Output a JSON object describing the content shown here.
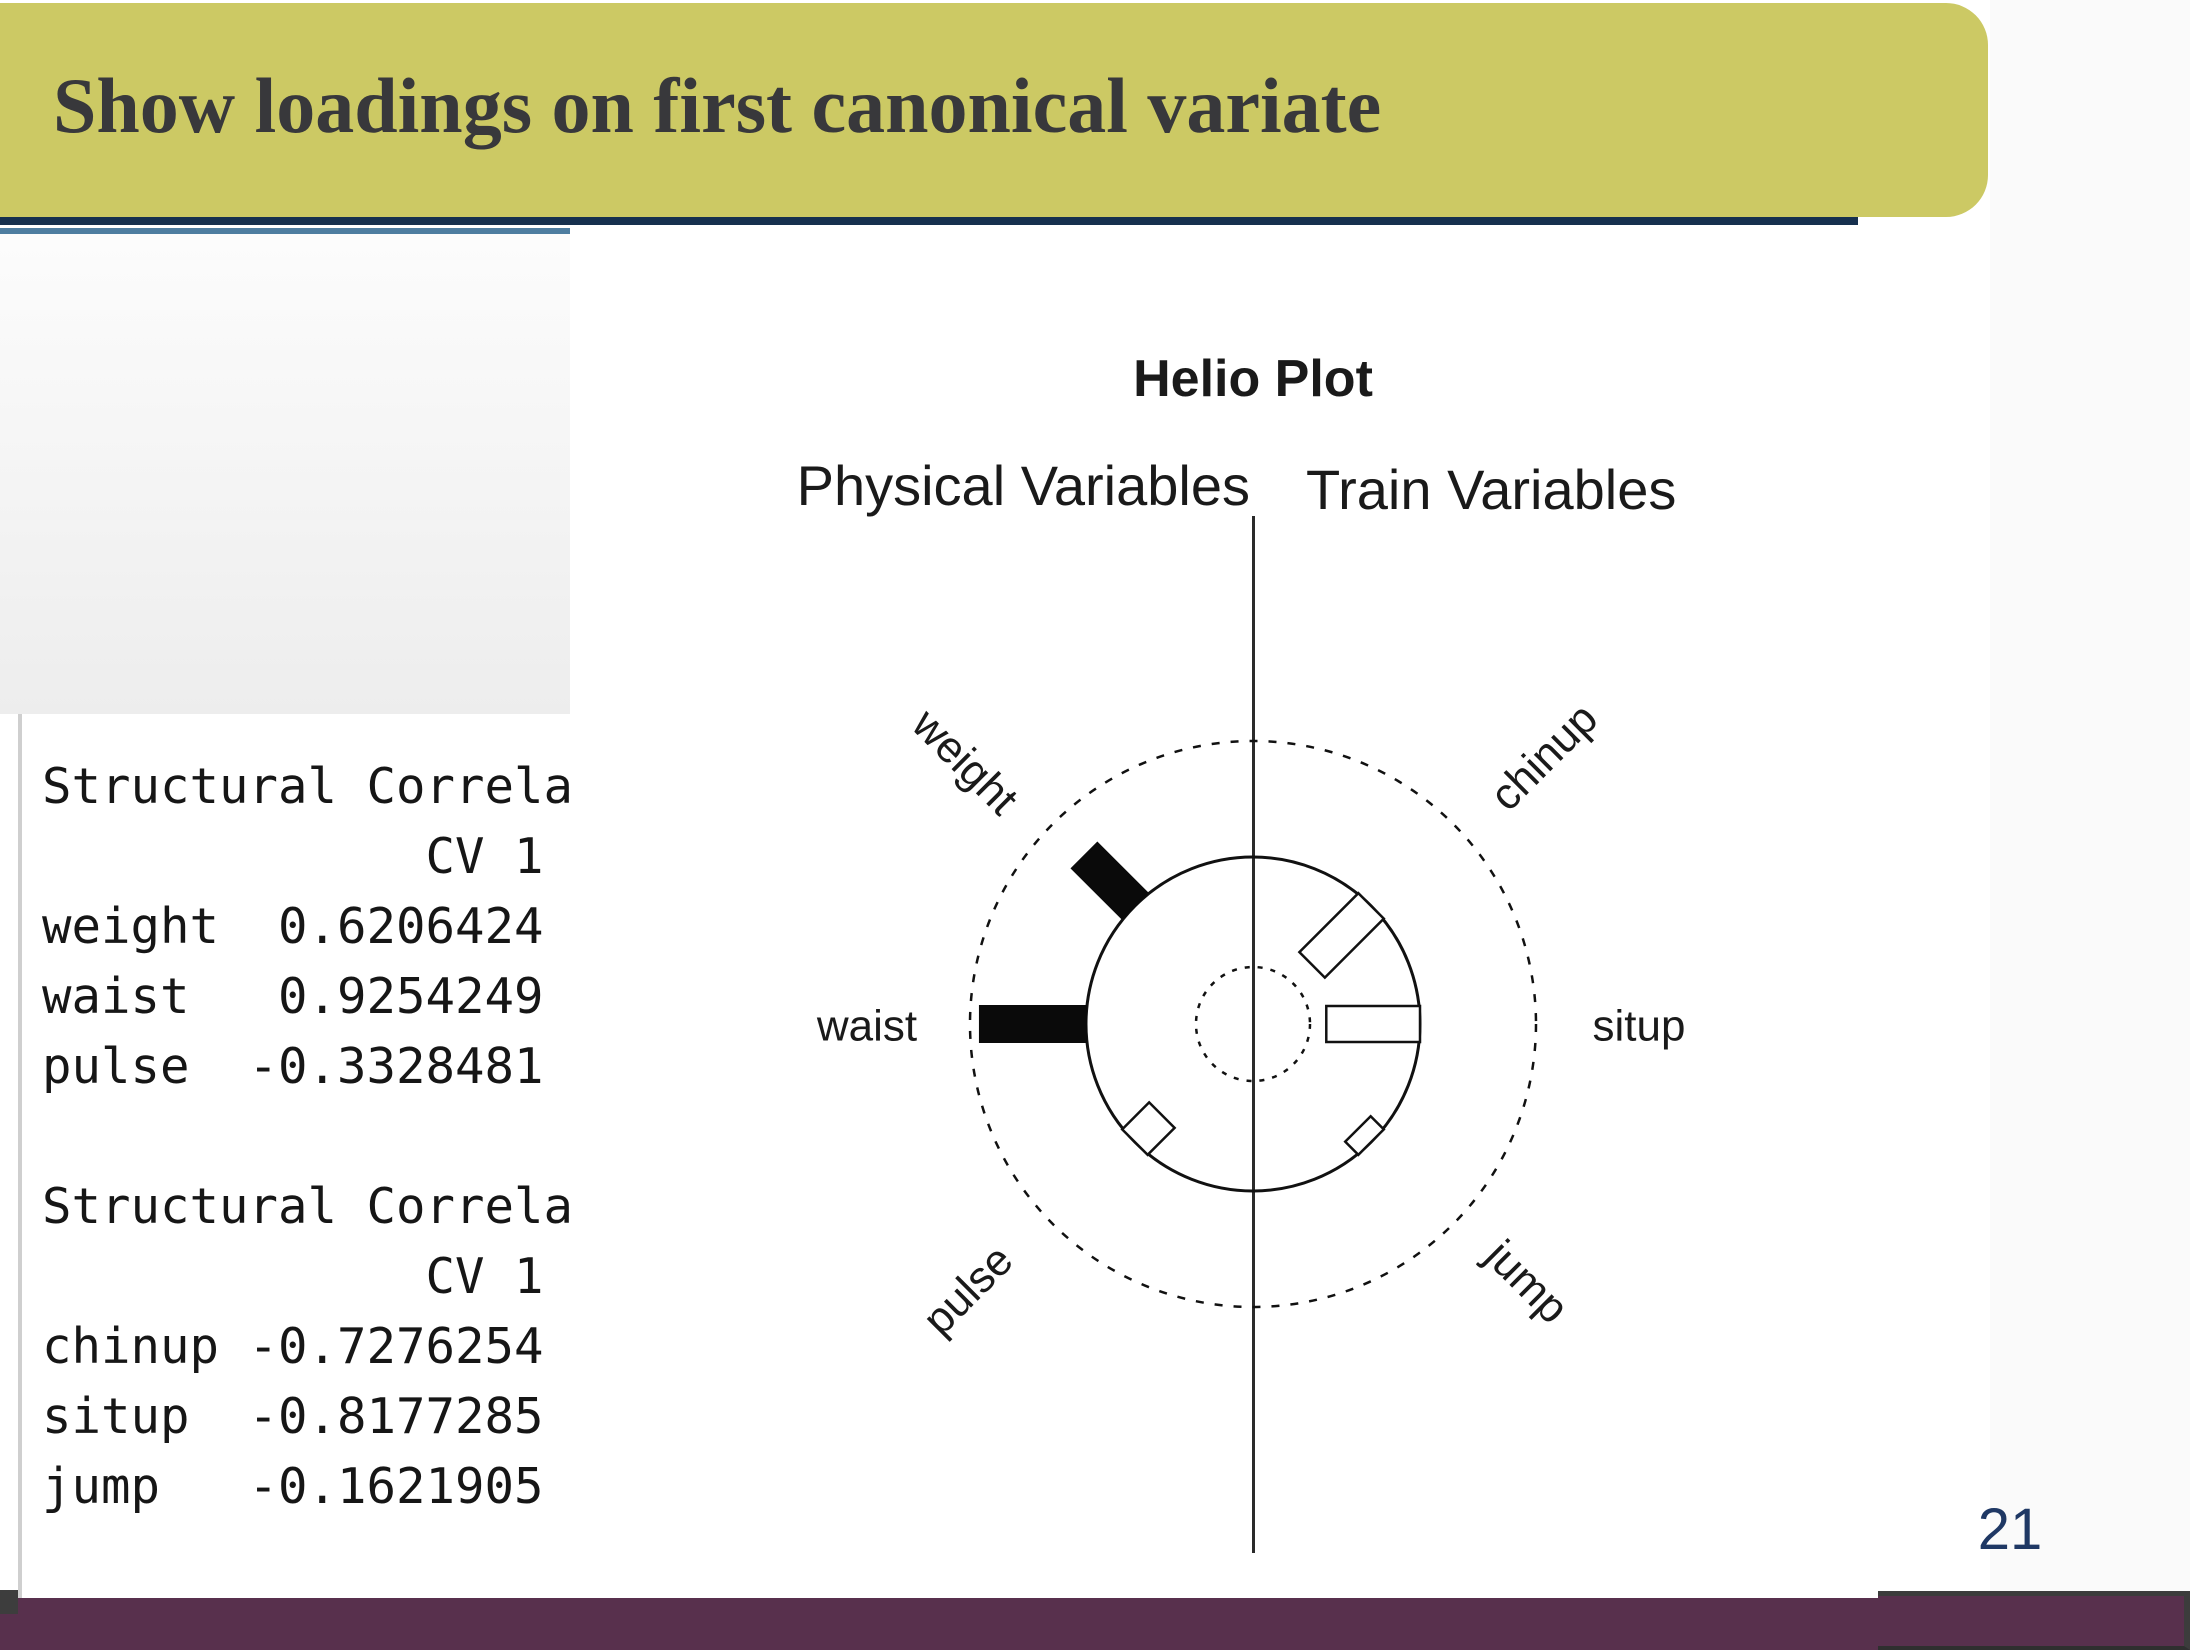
{
  "slide": {
    "title": "Show loadings on first canonical variate",
    "page_number": "21"
  },
  "console": {
    "text": "Structural Correla\n             CV 1\nweight  0.6206424\nwaist   0.9254249\npulse  -0.3328481\n\nStructural Correla\n             CV 1\nchinup -0.7276254\nsitup  -0.8177285\njump   -0.1621905",
    "block1_header": "Structural Correla",
    "block1_column": "CV 1",
    "block2_header": "Structural Correla",
    "block2_column": "CV 1"
  },
  "chart_data": {
    "type": "bar",
    "variant": "helio-plot-radial",
    "title": "Helio Plot",
    "left_header": "Physical Variables",
    "right_header": "Train Variables",
    "categories": [
      "weight",
      "waist",
      "pulse",
      "chinup",
      "situp",
      "jump"
    ],
    "values": [
      0.6206424,
      0.9254249,
      -0.3328481,
      -0.7276254,
      -0.8177285,
      -0.1621905
    ],
    "series": [
      {
        "name": "Physical Variables (CV 1)",
        "categories": [
          "weight",
          "waist",
          "pulse"
        ],
        "values": [
          0.6206424,
          0.9254249,
          -0.3328481
        ],
        "angles_deg": [
          135,
          180,
          225
        ]
      },
      {
        "name": "Train Variables (CV 1)",
        "categories": [
          "chinup",
          "situp",
          "jump"
        ],
        "values": [
          -0.7276254,
          -0.8177285,
          -0.1621905
        ],
        "angles_deg": [
          45,
          0,
          315
        ]
      }
    ],
    "encoding": "bar length proportional to |loading|; positive loadings filled black extending outward from solid unit circle; negative loadings hollow extending inward; dashed outer circle marks loading = 1",
    "legend_position": "none",
    "grid": false
  },
  "colors": {
    "banner": "#ccc964",
    "navy_rule": "#16304e",
    "blue_rule": "#4e7da0",
    "footer": "#58304d",
    "page_number": "#1f3864"
  }
}
